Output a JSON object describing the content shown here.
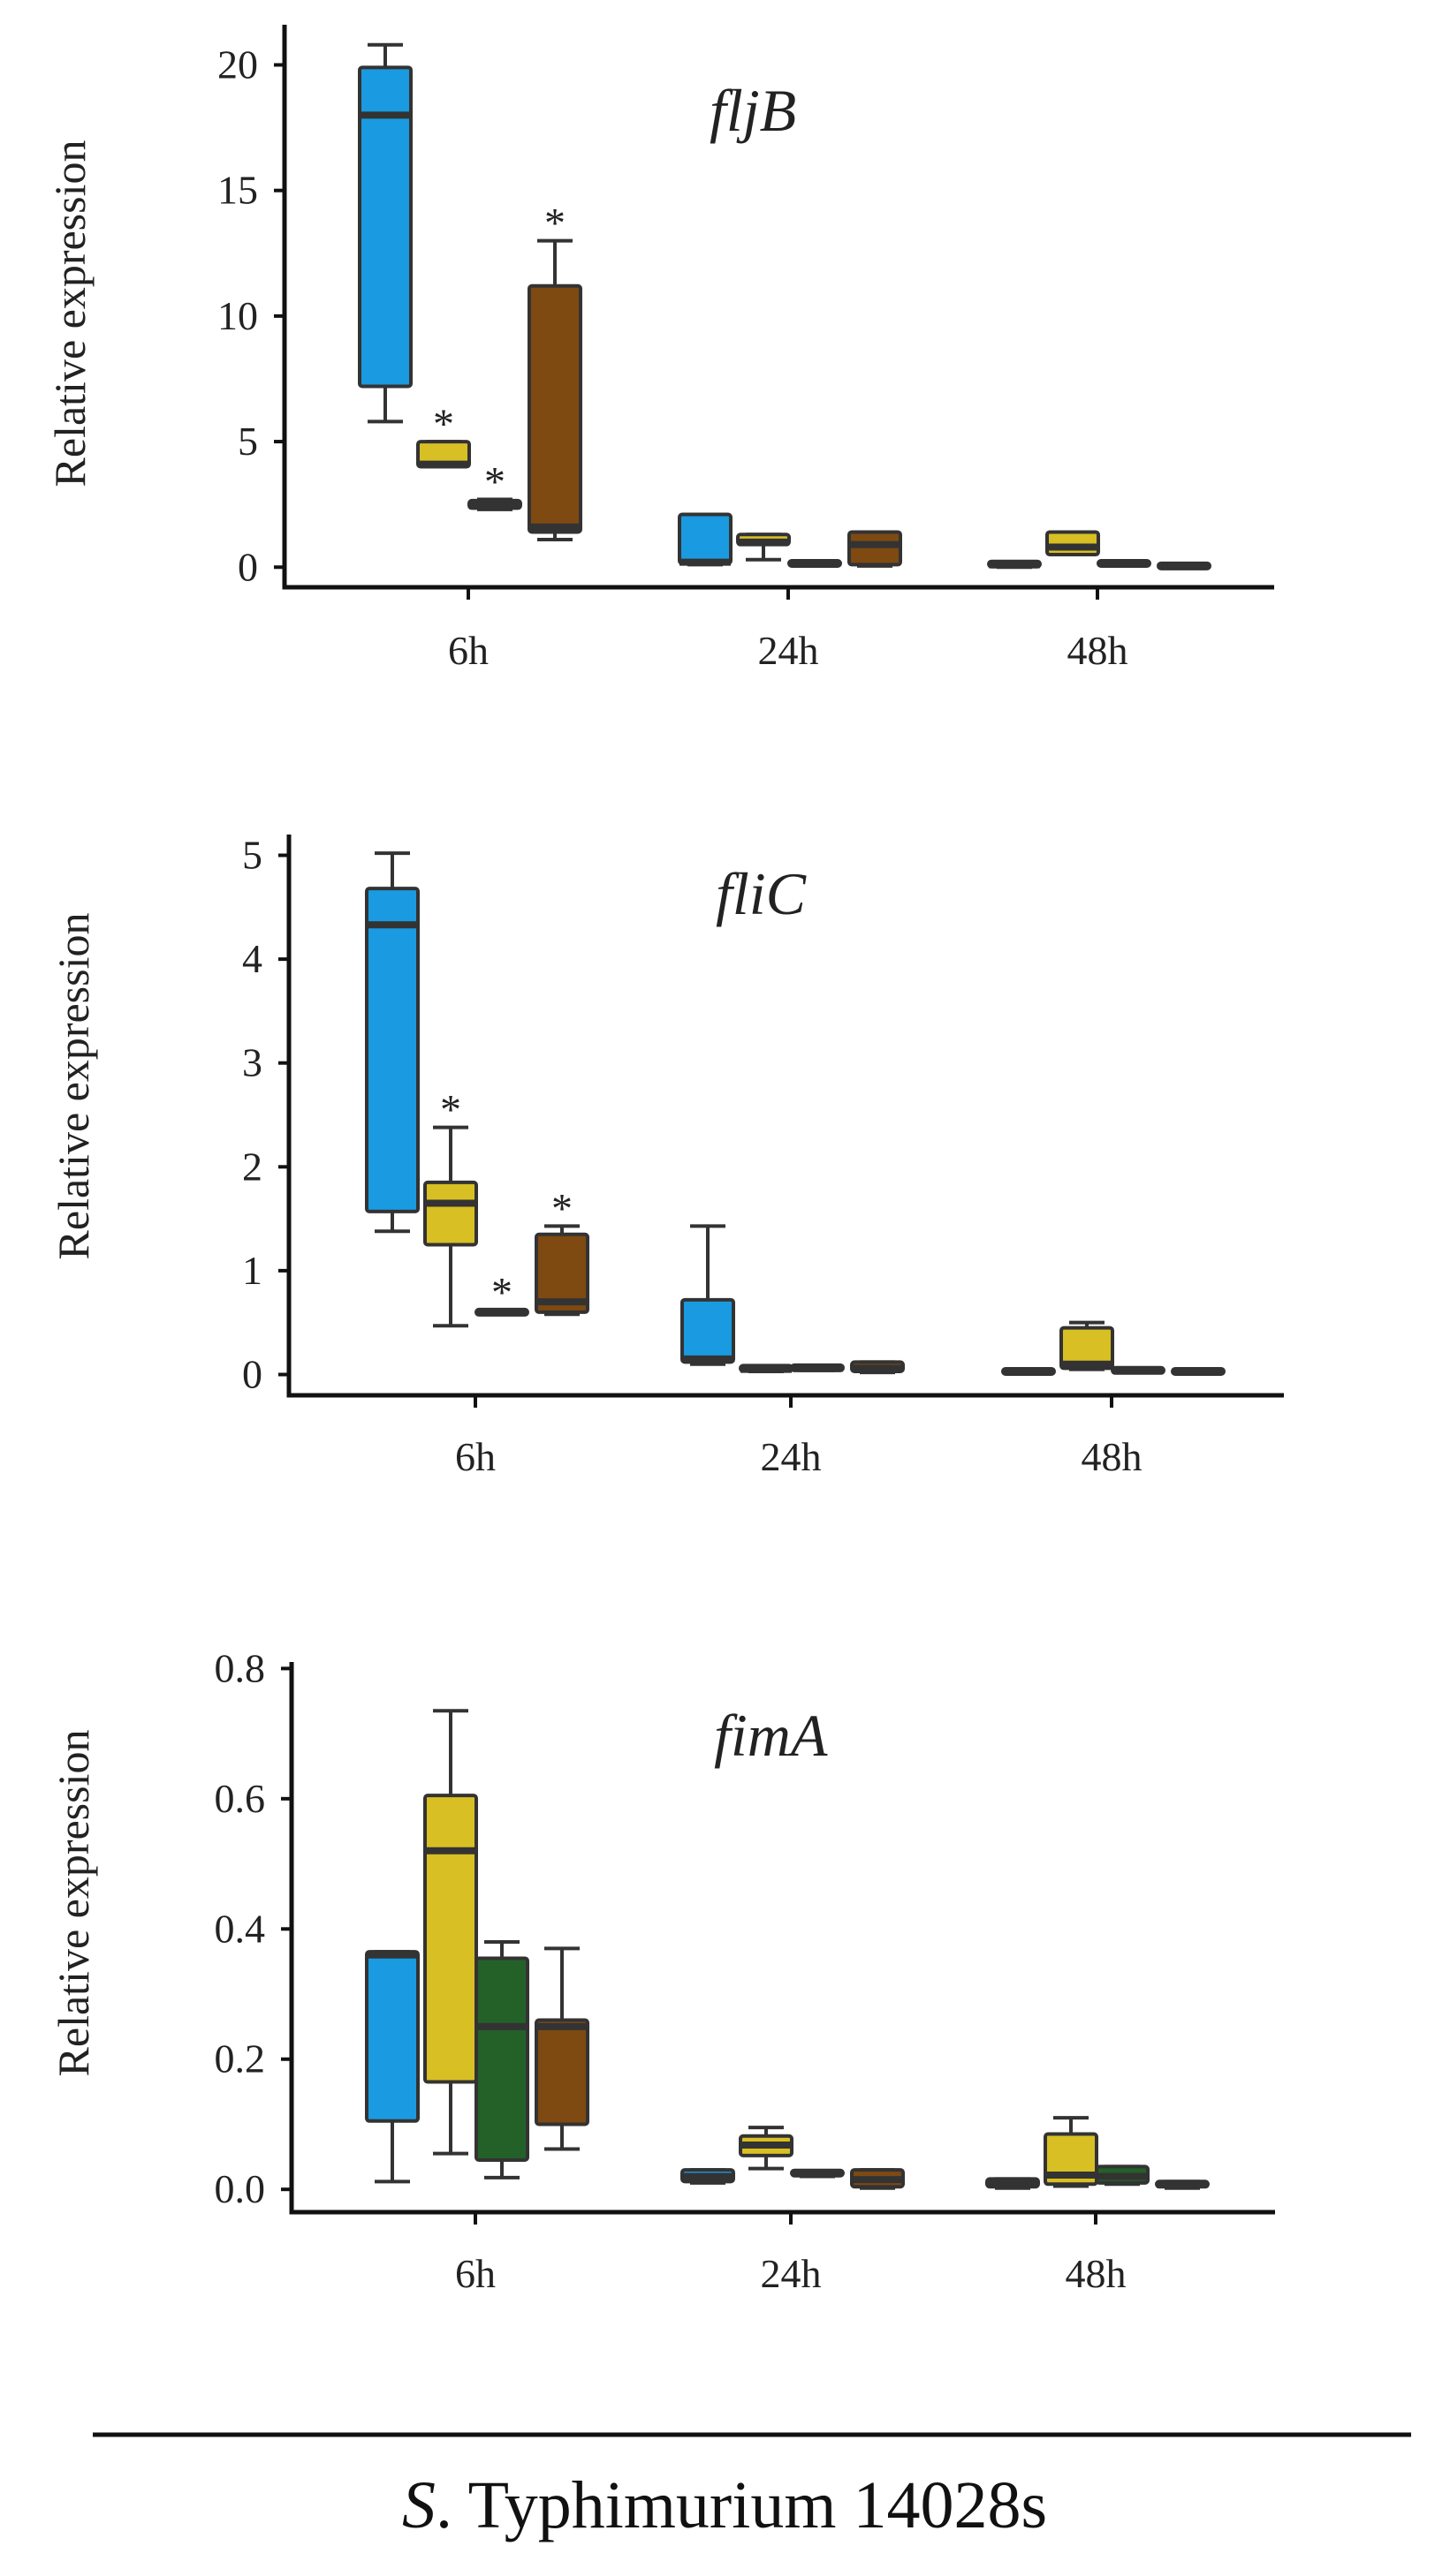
{
  "caption": {
    "italic": "S",
    "rest": ". Typhimurium 14028s"
  },
  "colors": {
    "treatment_blue": "#1a9ae0",
    "treatment_yellow": "#d8bf23",
    "treatment_green": "#236128",
    "treatment_brown": "#7e4a12",
    "outline": "#333333"
  },
  "chart_data": [
    {
      "type": "box",
      "title": "fljB",
      "ylabel": "Relative expression",
      "categories": [
        "6h",
        "24h",
        "48h"
      ],
      "yticks": [
        0,
        5,
        10,
        15,
        20
      ],
      "ytick_labels": [
        "0",
        "5",
        "10",
        "15",
        "20"
      ],
      "ylim": [
        -0.8,
        21.6
      ],
      "boxes": [
        {
          "group": "6h",
          "slot": 0,
          "color": "blue",
          "min": 5.8,
          "q1": 7.2,
          "median": 18.0,
          "q3": 19.9,
          "max": 20.8
        },
        {
          "group": "6h",
          "slot": 1,
          "color": "yellow",
          "min": 4.0,
          "q1": 4.0,
          "median": 4.1,
          "q3": 5.0,
          "max": 5.0,
          "significant": true
        },
        {
          "group": "6h",
          "slot": 2,
          "color": "green",
          "min": 2.3,
          "q1": 2.35,
          "median": 2.45,
          "q3": 2.65,
          "max": 2.7,
          "significant": true
        },
        {
          "group": "6h",
          "slot": 3,
          "color": "brown",
          "min": 1.1,
          "q1": 1.4,
          "median": 1.6,
          "q3": 11.2,
          "max": 13.0,
          "significant": true
        },
        {
          "group": "24h",
          "slot": 0,
          "color": "blue",
          "min": 0.1,
          "q1": 0.15,
          "median": 0.2,
          "q3": 2.1,
          "max": 2.1
        },
        {
          "group": "24h",
          "slot": 1,
          "color": "yellow",
          "min": 0.3,
          "q1": 0.9,
          "median": 1.0,
          "q3": 1.3,
          "max": 1.3
        },
        {
          "group": "24h",
          "slot": 2,
          "color": "green",
          "min": 0.1,
          "q1": 0.1,
          "median": 0.15,
          "q3": 0.2,
          "max": 0.2
        },
        {
          "group": "24h",
          "slot": 3,
          "color": "brown",
          "min": 0.05,
          "q1": 0.1,
          "median": 0.9,
          "q3": 1.4,
          "max": 1.4
        },
        {
          "group": "48h",
          "slot": 0,
          "color": "blue",
          "min": 0.0,
          "q1": 0.05,
          "median": 0.1,
          "q3": 0.2,
          "max": 0.2
        },
        {
          "group": "48h",
          "slot": 1,
          "color": "yellow",
          "min": 0.5,
          "q1": 0.5,
          "median": 0.8,
          "q3": 1.4,
          "max": 1.4
        },
        {
          "group": "48h",
          "slot": 2,
          "color": "green",
          "min": 0.05,
          "q1": 0.1,
          "median": 0.15,
          "q3": 0.2,
          "max": 0.2
        },
        {
          "group": "48h",
          "slot": 3,
          "color": "brown",
          "min": 0.0,
          "q1": 0.02,
          "median": 0.05,
          "q3": 0.08,
          "max": 0.1
        }
      ]
    },
    {
      "type": "box",
      "title": "fliC",
      "ylabel": "Relative expression",
      "categories": [
        "6h",
        "24h",
        "48h"
      ],
      "yticks": [
        0,
        1,
        2,
        3,
        4,
        5
      ],
      "ytick_labels": [
        "0",
        "1",
        "2",
        "3",
        "4",
        "5"
      ],
      "ylim": [
        -0.2,
        5.2
      ],
      "boxes": [
        {
          "group": "6h",
          "slot": 0,
          "color": "blue",
          "min": 1.38,
          "q1": 1.57,
          "median": 4.33,
          "q3": 4.68,
          "max": 5.02
        },
        {
          "group": "6h",
          "slot": 1,
          "color": "yellow",
          "min": 0.47,
          "q1": 1.25,
          "median": 1.65,
          "q3": 1.85,
          "max": 2.38,
          "significant": true
        },
        {
          "group": "6h",
          "slot": 2,
          "color": "green",
          "min": 0.58,
          "q1": 0.58,
          "median": 0.6,
          "q3": 0.62,
          "max": 0.62,
          "significant": true
        },
        {
          "group": "6h",
          "slot": 3,
          "color": "brown",
          "min": 0.58,
          "q1": 0.6,
          "median": 0.7,
          "q3": 1.35,
          "max": 1.43,
          "significant": true
        },
        {
          "group": "24h",
          "slot": 0,
          "color": "blue",
          "min": 0.1,
          "q1": 0.12,
          "median": 0.15,
          "q3": 0.72,
          "max": 1.43
        },
        {
          "group": "24h",
          "slot": 1,
          "color": "yellow",
          "min": 0.03,
          "q1": 0.04,
          "median": 0.05,
          "q3": 0.08,
          "max": 0.08
        },
        {
          "group": "24h",
          "slot": 2,
          "color": "green",
          "min": 0.04,
          "q1": 0.05,
          "median": 0.06,
          "q3": 0.08,
          "max": 0.08
        },
        {
          "group": "24h",
          "slot": 3,
          "color": "brown",
          "min": 0.02,
          "q1": 0.03,
          "median": 0.06,
          "q3": 0.12,
          "max": 0.12
        },
        {
          "group": "48h",
          "slot": 0,
          "color": "blue",
          "min": 0.01,
          "q1": 0.02,
          "median": 0.03,
          "q3": 0.04,
          "max": 0.04
        },
        {
          "group": "48h",
          "slot": 1,
          "color": "yellow",
          "min": 0.05,
          "q1": 0.06,
          "median": 0.1,
          "q3": 0.45,
          "max": 0.5
        },
        {
          "group": "48h",
          "slot": 2,
          "color": "green",
          "min": 0.02,
          "q1": 0.03,
          "median": 0.04,
          "q3": 0.05,
          "max": 0.05
        },
        {
          "group": "48h",
          "slot": 3,
          "color": "brown",
          "min": 0.01,
          "q1": 0.02,
          "median": 0.03,
          "q3": 0.04,
          "max": 0.04
        }
      ]
    },
    {
      "type": "box",
      "title": "fimA",
      "ylabel": "Relative expression",
      "categories": [
        "6h",
        "24h",
        "48h"
      ],
      "yticks": [
        0,
        0.2,
        0.4,
        0.6,
        0.8
      ],
      "ytick_labels": [
        "0.0",
        "0.2",
        "0.4",
        "0.6",
        "0.8"
      ],
      "ylim": [
        -0.035,
        0.81
      ],
      "boxes": [
        {
          "group": "6h",
          "slot": 0,
          "color": "blue",
          "min": 0.012,
          "q1": 0.105,
          "median": 0.36,
          "q3": 0.365,
          "max": 0.365
        },
        {
          "group": "6h",
          "slot": 1,
          "color": "yellow",
          "min": 0.055,
          "q1": 0.165,
          "median": 0.52,
          "q3": 0.605,
          "max": 0.735
        },
        {
          "group": "6h",
          "slot": 2,
          "color": "green",
          "min": 0.018,
          "q1": 0.045,
          "median": 0.25,
          "q3": 0.355,
          "max": 0.38
        },
        {
          "group": "6h",
          "slot": 3,
          "color": "brown",
          "min": 0.062,
          "q1": 0.1,
          "median": 0.25,
          "q3": 0.26,
          "max": 0.37
        },
        {
          "group": "24h",
          "slot": 0,
          "color": "blue",
          "min": 0.01,
          "q1": 0.012,
          "median": 0.02,
          "q3": 0.03,
          "max": 0.03
        },
        {
          "group": "24h",
          "slot": 1,
          "color": "yellow",
          "min": 0.032,
          "q1": 0.052,
          "median": 0.068,
          "q3": 0.082,
          "max": 0.095
        },
        {
          "group": "24h",
          "slot": 2,
          "color": "green",
          "min": 0.02,
          "q1": 0.022,
          "median": 0.025,
          "q3": 0.028,
          "max": 0.028
        },
        {
          "group": "24h",
          "slot": 3,
          "color": "brown",
          "min": 0.002,
          "q1": 0.004,
          "median": 0.015,
          "q3": 0.03,
          "max": 0.03
        },
        {
          "group": "48h",
          "slot": 0,
          "color": "blue",
          "min": 0.002,
          "q1": 0.004,
          "median": 0.01,
          "q3": 0.016,
          "max": 0.016
        },
        {
          "group": "48h",
          "slot": 1,
          "color": "yellow",
          "min": 0.005,
          "q1": 0.008,
          "median": 0.022,
          "q3": 0.085,
          "max": 0.11
        },
        {
          "group": "48h",
          "slot": 2,
          "color": "green",
          "min": 0.008,
          "q1": 0.01,
          "median": 0.02,
          "q3": 0.035,
          "max": 0.035
        },
        {
          "group": "48h",
          "slot": 3,
          "color": "brown",
          "min": 0.002,
          "q1": 0.004,
          "median": 0.008,
          "q3": 0.012,
          "max": 0.012
        }
      ]
    }
  ]
}
